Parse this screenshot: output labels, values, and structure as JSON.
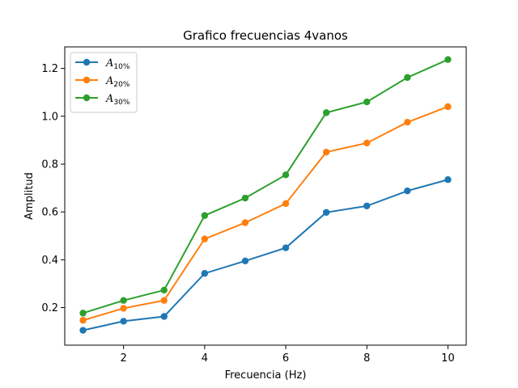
{
  "chart_data": {
    "type": "line",
    "title": "Grafico frecuencias 4vanos",
    "xlabel": "Frecuencia (Hz)",
    "ylabel": "Amplitud",
    "x": [
      1,
      2,
      3,
      4,
      5,
      6,
      7,
      8,
      9,
      10
    ],
    "xlim": [
      0.55,
      10.45
    ],
    "ylim": [
      0.043,
      1.29
    ],
    "xticks": [
      2,
      4,
      6,
      8,
      10
    ],
    "yticks": [
      0.2,
      0.4,
      0.6,
      0.8,
      1.0,
      1.2
    ],
    "grid": false,
    "legend_position": "upper left",
    "series": [
      {
        "name": "A",
        "subscript": "10%",
        "color": "#1f77b4",
        "values": [
          0.105,
          0.143,
          0.163,
          0.343,
          0.395,
          0.45,
          0.598,
          0.625,
          0.688,
          0.735
        ]
      },
      {
        "name": "A",
        "subscript": "20%",
        "color": "#ff7f0e",
        "values": [
          0.147,
          0.197,
          0.23,
          0.487,
          0.555,
          0.635,
          0.85,
          0.888,
          0.975,
          1.04
        ]
      },
      {
        "name": "A",
        "subscript": "30%",
        "color": "#2ca02c",
        "values": [
          0.177,
          0.23,
          0.273,
          0.585,
          0.658,
          0.755,
          1.015,
          1.06,
          1.162,
          1.237
        ]
      }
    ]
  }
}
